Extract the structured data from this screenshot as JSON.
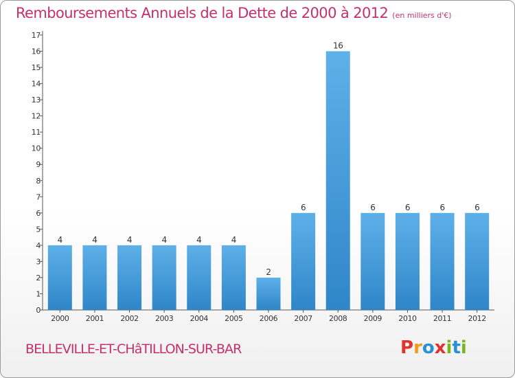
{
  "header": {
    "title": "Remboursements Annuels de la Dette de 2000 à 2012",
    "unit": "(en milliers d'€)"
  },
  "footer": {
    "commune": "BELLEVILLE-ET-CHâTILLON-SUR-BAR",
    "logo": "Proxiti"
  },
  "colors": {
    "title": "#c4306e",
    "bar_light": "#5eb0e8",
    "bar_dark": "#2f86c8",
    "logo": [
      "#e0322f",
      "#f39a1c",
      "#2a8fd6",
      "#e0322f",
      "#7ab51d",
      "#2a8fd6",
      "#7ab51d"
    ]
  },
  "chart_data": {
    "type": "bar",
    "categories": [
      "2000",
      "2001",
      "2002",
      "2003",
      "2004",
      "2005",
      "2006",
      "2007",
      "2008",
      "2009",
      "2010",
      "2011",
      "2012"
    ],
    "values": [
      4,
      4,
      4,
      4,
      4,
      4,
      2,
      6,
      16,
      6,
      6,
      6,
      6
    ],
    "value_labels": [
      "4",
      "4",
      "4",
      "4",
      "4",
      "4",
      "2",
      "6",
      "16",
      "6",
      "6",
      "6",
      "6"
    ],
    "yticks": [
      "0",
      "1",
      "2",
      "3",
      "4",
      "5",
      "6",
      "7",
      "8",
      "9",
      "10",
      "11",
      "12",
      "13",
      "14",
      "15",
      "16",
      "17"
    ],
    "ylim": [
      0,
      17
    ],
    "grid": false,
    "xlabel": "",
    "ylabel": ""
  }
}
